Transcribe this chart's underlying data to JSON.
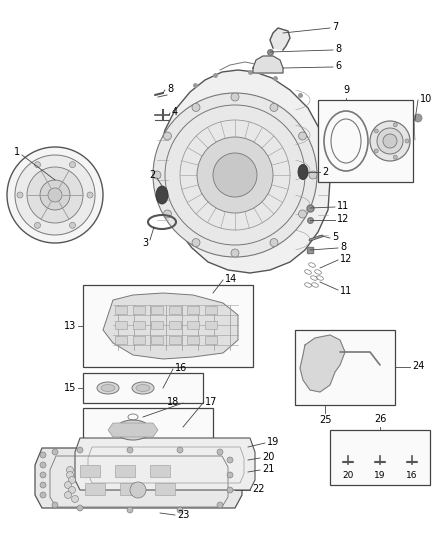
{
  "bg": "#ffffff",
  "fw": 4.38,
  "fh": 5.33,
  "dpi": 100,
  "lc": "#444444",
  "tc": "#000000",
  "fs": 7.0,
  "blw": 0.9,
  "gray1": "#555555",
  "gray2": "#777777",
  "gray3": "#999999",
  "gray4": "#cccccc",
  "darkgray": "#333333"
}
